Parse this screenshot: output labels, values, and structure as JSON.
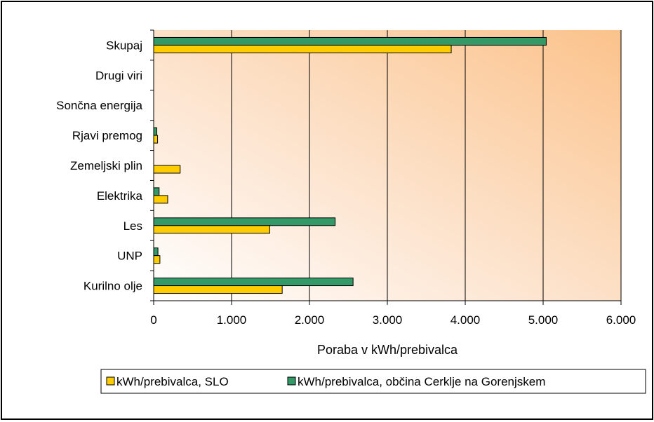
{
  "chart_data": {
    "type": "bar",
    "orientation": "horizontal",
    "categories": [
      "Kurilno olje",
      "UNP",
      "Les",
      "Elektrika",
      "Zemeljski plin",
      "Rjavi premog",
      "Sončna energija",
      "Drugi viri",
      "Skupaj"
    ],
    "series": [
      {
        "name": "kWh/prebivalca, SLO",
        "color": "#FFCC00",
        "values": [
          1650,
          80,
          1490,
          180,
          340,
          50,
          0,
          0,
          3820
        ]
      },
      {
        "name": "kWh/prebivalca, občina Cerklje na Gorenjskem",
        "color": "#339966",
        "values": [
          2560,
          55,
          2330,
          70,
          0,
          40,
          0,
          0,
          5040
        ]
      }
    ],
    "xlabel": "Poraba v kWh/prebivalca",
    "xlim": [
      0,
      6000
    ],
    "xticks": [
      0,
      1000,
      2000,
      3000,
      4000,
      5000,
      6000
    ],
    "xtick_labels": [
      "0",
      "1.000",
      "2.000",
      "3.000",
      "4.000",
      "5.000",
      "6.000"
    ],
    "grid": true,
    "legend_position": "bottom",
    "plot_background": "gradient peach to white"
  }
}
